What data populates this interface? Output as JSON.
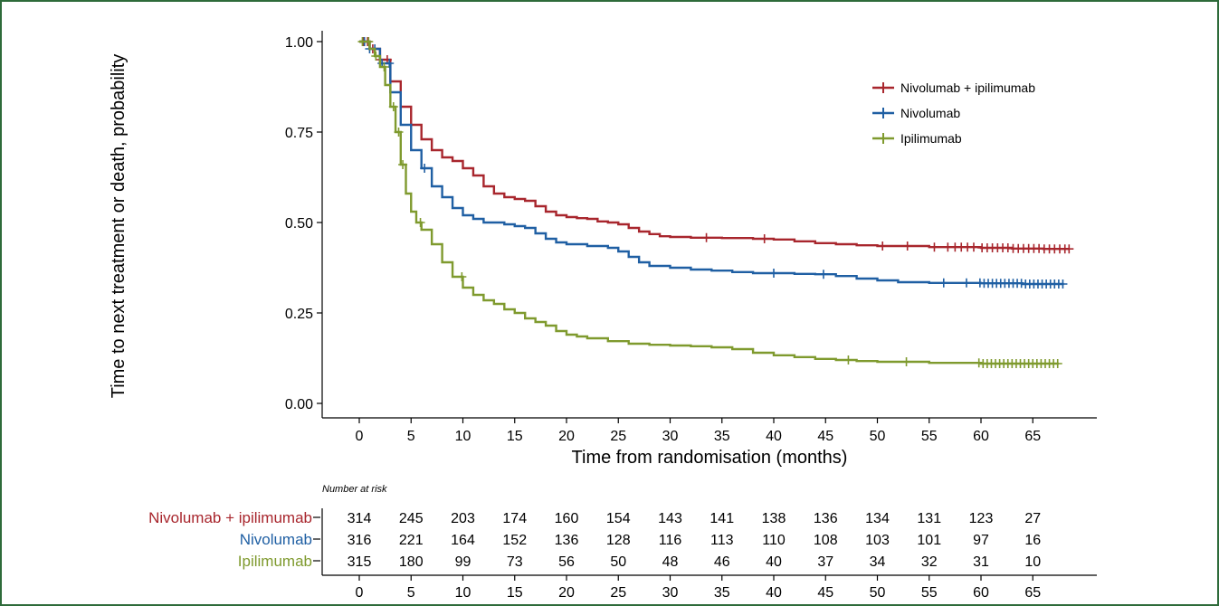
{
  "chart_data": {
    "type": "line",
    "ylabel": "Time to next treatment or death, probability",
    "xlabel": "Time from randomisation (months)",
    "xlim": [
      -3,
      71
    ],
    "ylim": [
      0,
      1.02
    ],
    "x_ticks": [
      0,
      5,
      10,
      15,
      20,
      25,
      30,
      35,
      40,
      45,
      50,
      55,
      60,
      65
    ],
    "y_ticks": [
      0.0,
      0.25,
      0.5,
      0.75,
      1.0
    ],
    "y_tick_labels": [
      "0.00",
      "0.25",
      "0.50",
      "0.75",
      "1.00"
    ],
    "legend_position": "top-right",
    "series": [
      {
        "name": "Nivolumab + ipilimumab",
        "color": "#a8262d",
        "points": [
          [
            0,
            1.0
          ],
          [
            1,
            0.98
          ],
          [
            2,
            0.95
          ],
          [
            3,
            0.89
          ],
          [
            4,
            0.82
          ],
          [
            5,
            0.77
          ],
          [
            6,
            0.73
          ],
          [
            7,
            0.7
          ],
          [
            8,
            0.68
          ],
          [
            9,
            0.67
          ],
          [
            10,
            0.65
          ],
          [
            11,
            0.63
          ],
          [
            12,
            0.6
          ],
          [
            13,
            0.58
          ],
          [
            14,
            0.57
          ],
          [
            15,
            0.565
          ],
          [
            16,
            0.56
          ],
          [
            17,
            0.545
          ],
          [
            18,
            0.53
          ],
          [
            19,
            0.52
          ],
          [
            20,
            0.515
          ],
          [
            21,
            0.512
          ],
          [
            22,
            0.51
          ],
          [
            23,
            0.503
          ],
          [
            24,
            0.5
          ],
          [
            25,
            0.495
          ],
          [
            26,
            0.485
          ],
          [
            27,
            0.475
          ],
          [
            28,
            0.468
          ],
          [
            29,
            0.462
          ],
          [
            30,
            0.46
          ],
          [
            32,
            0.458
          ],
          [
            35,
            0.457
          ],
          [
            38,
            0.455
          ],
          [
            40,
            0.453
          ],
          [
            42,
            0.448
          ],
          [
            44,
            0.443
          ],
          [
            46,
            0.44
          ],
          [
            48,
            0.437
          ],
          [
            50,
            0.435
          ],
          [
            55,
            0.432
          ],
          [
            60,
            0.43
          ],
          [
            63,
            0.428
          ],
          [
            66,
            0.427
          ],
          [
            68.5,
            0.427
          ]
        ],
        "censor_x": [
          0.4,
          0.8,
          1.3,
          2.0,
          2.7,
          33.5,
          39.1,
          50.5,
          52.9,
          55.5,
          56.8,
          57.5,
          58.1,
          58.7,
          59.3,
          60.1,
          60.6,
          61.1,
          61.6,
          62.1,
          62.6,
          63.1,
          63.6,
          64.1,
          64.6,
          65.1,
          65.6,
          66.1,
          66.6,
          67.1,
          67.6,
          68.1,
          68.5
        ]
      },
      {
        "name": "Nivolumab",
        "color": "#1f5fa3",
        "points": [
          [
            0,
            1.0
          ],
          [
            1,
            0.98
          ],
          [
            2,
            0.94
          ],
          [
            3,
            0.86
          ],
          [
            4,
            0.77
          ],
          [
            5,
            0.7
          ],
          [
            6,
            0.65
          ],
          [
            7,
            0.6
          ],
          [
            8,
            0.57
          ],
          [
            9,
            0.54
          ],
          [
            10,
            0.52
          ],
          [
            11,
            0.51
          ],
          [
            12,
            0.5
          ],
          [
            14,
            0.495
          ],
          [
            15,
            0.49
          ],
          [
            16,
            0.485
          ],
          [
            17,
            0.47
          ],
          [
            18,
            0.455
          ],
          [
            19,
            0.445
          ],
          [
            20,
            0.44
          ],
          [
            22,
            0.435
          ],
          [
            24,
            0.43
          ],
          [
            25,
            0.42
          ],
          [
            26,
            0.405
          ],
          [
            27,
            0.39
          ],
          [
            28,
            0.38
          ],
          [
            30,
            0.375
          ],
          [
            32,
            0.37
          ],
          [
            34,
            0.367
          ],
          [
            36,
            0.363
          ],
          [
            38,
            0.36
          ],
          [
            40,
            0.36
          ],
          [
            42,
            0.358
          ],
          [
            44,
            0.357
          ],
          [
            46,
            0.352
          ],
          [
            48,
            0.345
          ],
          [
            50,
            0.34
          ],
          [
            52,
            0.335
          ],
          [
            55,
            0.333
          ],
          [
            60,
            0.332
          ],
          [
            64,
            0.33
          ],
          [
            68,
            0.33
          ]
        ],
        "censor_x": [
          0.5,
          1.0,
          1.5,
          2.2,
          2.9,
          6.3,
          40.0,
          44.8,
          56.4,
          58.6,
          59.9,
          60.3,
          60.7,
          61.1,
          61.5,
          61.9,
          62.3,
          62.7,
          63.1,
          63.5,
          63.9,
          64.3,
          64.7,
          65.1,
          65.5,
          65.9,
          66.3,
          66.7,
          67.1,
          67.5,
          67.9
        ]
      },
      {
        "name": "Ipilimumab",
        "color": "#7f9a2e",
        "points": [
          [
            0,
            1.0
          ],
          [
            1,
            0.98
          ],
          [
            1.5,
            0.96
          ],
          [
            2,
            0.93
          ],
          [
            2.5,
            0.88
          ],
          [
            3,
            0.82
          ],
          [
            3.5,
            0.75
          ],
          [
            4,
            0.66
          ],
          [
            4.5,
            0.58
          ],
          [
            5,
            0.53
          ],
          [
            5.5,
            0.5
          ],
          [
            6,
            0.48
          ],
          [
            7,
            0.44
          ],
          [
            8,
            0.39
          ],
          [
            9,
            0.35
          ],
          [
            10,
            0.32
          ],
          [
            11,
            0.3
          ],
          [
            12,
            0.285
          ],
          [
            13,
            0.275
          ],
          [
            14,
            0.26
          ],
          [
            15,
            0.25
          ],
          [
            16,
            0.235
          ],
          [
            17,
            0.225
          ],
          [
            18,
            0.215
          ],
          [
            19,
            0.2
          ],
          [
            20,
            0.19
          ],
          [
            21,
            0.185
          ],
          [
            22,
            0.18
          ],
          [
            24,
            0.172
          ],
          [
            26,
            0.165
          ],
          [
            28,
            0.162
          ],
          [
            30,
            0.16
          ],
          [
            32,
            0.158
          ],
          [
            34,
            0.155
          ],
          [
            36,
            0.15
          ],
          [
            38,
            0.14
          ],
          [
            40,
            0.133
          ],
          [
            42,
            0.128
          ],
          [
            44,
            0.123
          ],
          [
            46,
            0.12
          ],
          [
            48,
            0.117
          ],
          [
            50,
            0.115
          ],
          [
            55,
            0.112
          ],
          [
            60,
            0.11
          ],
          [
            64,
            0.11
          ],
          [
            67.5,
            0.11
          ]
        ],
        "censor_x": [
          0.3,
          0.9,
          1.6,
          2.4,
          3.3,
          3.8,
          4.2,
          5.9,
          9.9,
          47.2,
          52.8,
          59.8,
          60.2,
          60.6,
          61.0,
          61.4,
          61.8,
          62.2,
          62.6,
          63.0,
          63.4,
          63.8,
          64.2,
          64.6,
          65.0,
          65.4,
          65.8,
          66.2,
          66.6,
          67.0,
          67.4
        ]
      }
    ],
    "risk_table": {
      "title": "Number at risk",
      "times": [
        0,
        5,
        10,
        15,
        20,
        25,
        30,
        35,
        40,
        45,
        50,
        55,
        60,
        65
      ],
      "rows": [
        {
          "name": "Nivolumab + ipilimumab",
          "color": "#a8262d",
          "values": [
            "314",
            "245",
            "203",
            "174",
            "160",
            "154",
            "143",
            "141",
            "138",
            "136",
            "134",
            "131",
            "123",
            "27"
          ]
        },
        {
          "name": "Nivolumab",
          "color": "#1f5fa3",
          "values": [
            "316",
            "221",
            "164",
            "152",
            "136",
            "128",
            "116",
            "113",
            "110",
            "108",
            "103",
            "101",
            "97",
            "16"
          ]
        },
        {
          "name": "Ipilimumab",
          "color": "#7f9a2e",
          "values": [
            "315",
            "180",
            "99",
            "73",
            "56",
            "50",
            "48",
            "46",
            "40",
            "37",
            "34",
            "32",
            "31",
            "10"
          ]
        }
      ]
    }
  }
}
